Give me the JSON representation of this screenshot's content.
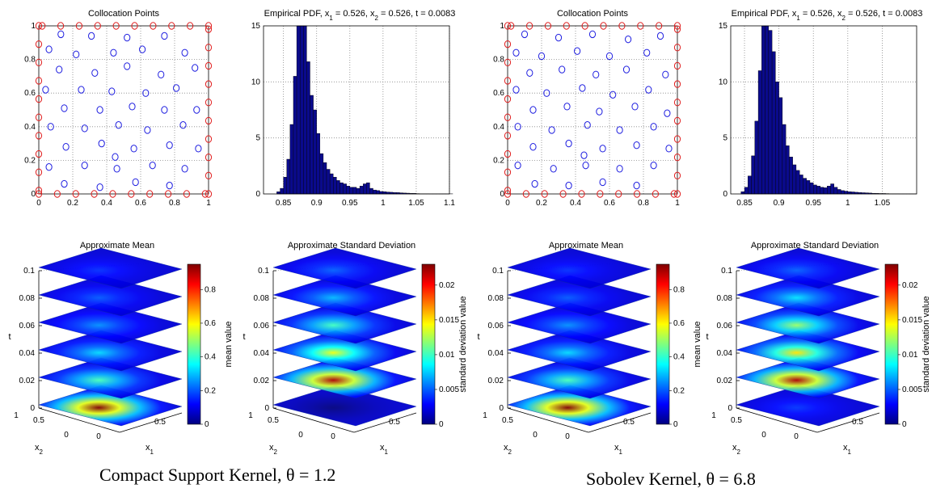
{
  "captions": {
    "left": "Compact Support Kernel, θ = 1.2",
    "right": "Sobolev Kernel, θ = 6.8"
  },
  "colors": {
    "interior_points": "#1f1fe0",
    "boundary_points": "#e02020",
    "histogram_bar": "#0a0a8c",
    "colormap": [
      "#00007f",
      "#0000ff",
      "#007fff",
      "#00ffff",
      "#7fff7f",
      "#ffff00",
      "#ff7f00",
      "#ff0000",
      "#7f0000"
    ]
  },
  "chart_data": [
    {
      "id": "csk-collocation",
      "type": "scatter",
      "title": "Collocation Points",
      "xlim": [
        0,
        1
      ],
      "ylim": [
        0,
        1
      ],
      "xticks": [
        "0",
        "0.2",
        "0.4",
        "0.6",
        "0.8",
        "1"
      ],
      "yticks": [
        "0",
        "0.2",
        "0.4",
        "0.6",
        "0.8",
        "1"
      ],
      "grid": true,
      "boundary_points_per_side": 10,
      "interior_points": [
        [
          0.13,
          0.95
        ],
        [
          0.31,
          0.94
        ],
        [
          0.52,
          0.93
        ],
        [
          0.74,
          0.94
        ],
        [
          0.06,
          0.86
        ],
        [
          0.22,
          0.83
        ],
        [
          0.44,
          0.84
        ],
        [
          0.61,
          0.86
        ],
        [
          0.86,
          0.84
        ],
        [
          0.12,
          0.74
        ],
        [
          0.33,
          0.72
        ],
        [
          0.52,
          0.76
        ],
        [
          0.72,
          0.71
        ],
        [
          0.92,
          0.75
        ],
        [
          0.04,
          0.62
        ],
        [
          0.25,
          0.62
        ],
        [
          0.43,
          0.61
        ],
        [
          0.63,
          0.6
        ],
        [
          0.81,
          0.63
        ],
        [
          0.15,
          0.51
        ],
        [
          0.36,
          0.5
        ],
        [
          0.55,
          0.52
        ],
        [
          0.74,
          0.5
        ],
        [
          0.93,
          0.5
        ],
        [
          0.07,
          0.4
        ],
        [
          0.27,
          0.39
        ],
        [
          0.47,
          0.41
        ],
        [
          0.64,
          0.38
        ],
        [
          0.85,
          0.41
        ],
        [
          0.16,
          0.28
        ],
        [
          0.37,
          0.3
        ],
        [
          0.56,
          0.27
        ],
        [
          0.77,
          0.29
        ],
        [
          0.94,
          0.27
        ],
        [
          0.06,
          0.16
        ],
        [
          0.27,
          0.17
        ],
        [
          0.46,
          0.15
        ],
        [
          0.67,
          0.17
        ],
        [
          0.86,
          0.15
        ],
        [
          0.15,
          0.06
        ],
        [
          0.36,
          0.04
        ],
        [
          0.57,
          0.07
        ],
        [
          0.77,
          0.05
        ],
        [
          0.45,
          0.22
        ]
      ]
    },
    {
      "id": "csk-pdf",
      "type": "bar",
      "title": "Empirical PDF, x₁ = 0.526, x₂ = 0.526, t = 0.0083",
      "xlim": [
        0.82,
        1.1
      ],
      "ylim": [
        0,
        15
      ],
      "xticks": [
        "0.85",
        "0.9",
        "0.95",
        "1",
        "1.05",
        "1.1"
      ],
      "yticks": [
        "0",
        "5",
        "10",
        "15"
      ],
      "grid": true,
      "bin_start": 0.84,
      "bin_width": 0.005,
      "values": [
        0.2,
        0.5,
        1.5,
        3.1,
        6.2,
        10.5,
        15,
        15,
        15,
        11.8,
        8.8,
        7.5,
        5.4,
        3.6,
        2.8,
        2.2,
        1.8,
        1.5,
        1.2,
        1.0,
        0.9,
        0.7,
        0.6,
        0.6,
        0.5,
        0.7,
        0.9,
        1.0,
        0.5,
        0.35,
        0.3,
        0.22,
        0.2,
        0.17,
        0.15,
        0.13,
        0.12,
        0.1,
        0.08,
        0.07,
        0.05,
        0.05,
        0.03,
        0.02,
        0.02,
        0.02,
        0.01,
        0.01,
        0.01,
        0.01,
        0.01,
        0.01,
        0.01
      ]
    },
    {
      "id": "csk-mean",
      "type": "heatmap",
      "title": "Approximate Mean",
      "zlabel": "t",
      "xlabel": "x₁",
      "ylabel": "x₂",
      "zticks": [
        "0",
        "0.02",
        "0.04",
        "0.06",
        "0.08",
        "0.1"
      ],
      "xticks": [
        "0",
        "0.5"
      ],
      "yticks": [
        "0",
        "0.5",
        "1"
      ],
      "slices_t": [
        0,
        0.02,
        0.04,
        0.06,
        0.08,
        0.1
      ],
      "peak_per_slice": [
        0.95,
        0.42,
        0.32,
        0.25,
        0.2,
        0.16
      ],
      "colorbar": {
        "label": "mean value",
        "ticks": [
          "0",
          "0.2",
          "0.4",
          "0.6",
          "0.8"
        ],
        "range": [
          0,
          0.95
        ]
      }
    },
    {
      "id": "csk-std",
      "type": "heatmap",
      "title": "Approximate Standard Deviation",
      "zlabel": "t",
      "xlabel": "x₁",
      "ylabel": "x₂",
      "zticks": [
        "0",
        "0.02",
        "0.04",
        "0.06",
        "0.08",
        "0.1"
      ],
      "xticks": [
        "0",
        "0.5"
      ],
      "yticks": [
        "0",
        "0.5",
        "1"
      ],
      "slices_t": [
        0,
        0.02,
        0.04,
        0.06,
        0.08,
        0.1
      ],
      "peak_per_slice": [
        0.0,
        0.022,
        0.014,
        0.01,
        0.007,
        0.005
      ],
      "colorbar": {
        "label": "standard deviation value",
        "ticks": [
          "0",
          "0.005",
          "0.01",
          "0.015",
          "0.02"
        ],
        "range": [
          0,
          0.023
        ]
      }
    },
    {
      "id": "sob-collocation",
      "type": "scatter",
      "title": "Collocation Points",
      "xlim": [
        0,
        1
      ],
      "ylim": [
        0,
        1
      ],
      "xticks": [
        "0",
        "0.2",
        "0.4",
        "0.6",
        "0.8",
        "1"
      ],
      "yticks": [
        "0",
        "0.2",
        "0.4",
        "0.6",
        "0.8",
        "1"
      ],
      "grid": true,
      "boundary_points_per_side": 10,
      "interior_points": [
        [
          0.1,
          0.95
        ],
        [
          0.3,
          0.93
        ],
        [
          0.5,
          0.95
        ],
        [
          0.71,
          0.92
        ],
        [
          0.9,
          0.94
        ],
        [
          0.05,
          0.84
        ],
        [
          0.2,
          0.82
        ],
        [
          0.41,
          0.85
        ],
        [
          0.6,
          0.82
        ],
        [
          0.82,
          0.84
        ],
        [
          0.13,
          0.72
        ],
        [
          0.32,
          0.74
        ],
        [
          0.52,
          0.71
        ],
        [
          0.7,
          0.74
        ],
        [
          0.93,
          0.71
        ],
        [
          0.05,
          0.62
        ],
        [
          0.23,
          0.6
        ],
        [
          0.44,
          0.63
        ],
        [
          0.62,
          0.59
        ],
        [
          0.83,
          0.62
        ],
        [
          0.15,
          0.5
        ],
        [
          0.35,
          0.52
        ],
        [
          0.54,
          0.49
        ],
        [
          0.75,
          0.52
        ],
        [
          0.94,
          0.48
        ],
        [
          0.06,
          0.4
        ],
        [
          0.26,
          0.38
        ],
        [
          0.47,
          0.41
        ],
        [
          0.66,
          0.38
        ],
        [
          0.86,
          0.4
        ],
        [
          0.15,
          0.28
        ],
        [
          0.36,
          0.3
        ],
        [
          0.56,
          0.27
        ],
        [
          0.76,
          0.29
        ],
        [
          0.95,
          0.27
        ],
        [
          0.06,
          0.17
        ],
        [
          0.27,
          0.15
        ],
        [
          0.46,
          0.17
        ],
        [
          0.66,
          0.15
        ],
        [
          0.86,
          0.17
        ],
        [
          0.16,
          0.06
        ],
        [
          0.36,
          0.05
        ],
        [
          0.56,
          0.07
        ],
        [
          0.76,
          0.05
        ],
        [
          0.45,
          0.23
        ]
      ]
    },
    {
      "id": "sob-pdf",
      "type": "bar",
      "title": "Empirical PDF, x₁ = 0.526, x₂ = 0.526, t = 0.0083",
      "xlim": [
        0.83,
        1.1
      ],
      "ylim": [
        0,
        15
      ],
      "xticks": [
        "0.85",
        "0.9",
        "0.95",
        "1",
        "1.05"
      ],
      "yticks": [
        "0",
        "5",
        "10",
        "15"
      ],
      "grid": true,
      "bin_start": 0.845,
      "bin_width": 0.005,
      "values": [
        0.2,
        0.6,
        1.6,
        3.4,
        6.5,
        11.0,
        15,
        15,
        14.6,
        12.7,
        10.0,
        8.6,
        6.2,
        4.3,
        3.3,
        2.6,
        2.1,
        1.7,
        1.4,
        1.2,
        1.0,
        0.8,
        0.7,
        0.6,
        0.55,
        0.7,
        0.9,
        0.6,
        0.4,
        0.3,
        0.25,
        0.2,
        0.18,
        0.15,
        0.13,
        0.11,
        0.1,
        0.08,
        0.06,
        0.05,
        0.04,
        0.04,
        0.03,
        0.02,
        0.02,
        0.02,
        0.01,
        0.01,
        0.01,
        0.01,
        0.01
      ]
    },
    {
      "id": "sob-mean",
      "type": "heatmap",
      "title": "Approximate Mean",
      "zlabel": "t",
      "xlabel": "x₁",
      "ylabel": "x₂",
      "zticks": [
        "0",
        "0.02",
        "0.04",
        "0.06",
        "0.08",
        "0.1"
      ],
      "xticks": [
        "0",
        "0.5"
      ],
      "yticks": [
        "0",
        "0.5",
        "1"
      ],
      "slices_t": [
        0,
        0.02,
        0.04,
        0.06,
        0.08,
        0.1
      ],
      "peak_per_slice": [
        0.95,
        0.42,
        0.32,
        0.25,
        0.2,
        0.16
      ],
      "colorbar": {
        "label": "mean value",
        "ticks": [
          "0",
          "0.2",
          "0.4",
          "0.6",
          "0.8"
        ],
        "range": [
          0,
          0.95
        ]
      }
    },
    {
      "id": "sob-std",
      "type": "heatmap",
      "title": "Approximate Standard Deviation",
      "zlabel": "t",
      "xlabel": "x₁",
      "ylabel": "x₂",
      "zticks": [
        "0",
        "0.02",
        "0.04",
        "0.06",
        "0.08",
        "0.1"
      ],
      "xticks": [
        "0",
        "0.5"
      ],
      "yticks": [
        "0",
        "0.5",
        "1"
      ],
      "slices_t": [
        0,
        0.02,
        0.04,
        0.06,
        0.08,
        0.1
      ],
      "peak_per_slice": [
        0.004,
        0.022,
        0.015,
        0.012,
        0.008,
        0.005
      ],
      "colorbar": {
        "label": "standard deviation value",
        "ticks": [
          "0",
          "0.005",
          "0.01",
          "0.015",
          "0.02"
        ],
        "range": [
          0,
          0.023
        ]
      }
    }
  ]
}
